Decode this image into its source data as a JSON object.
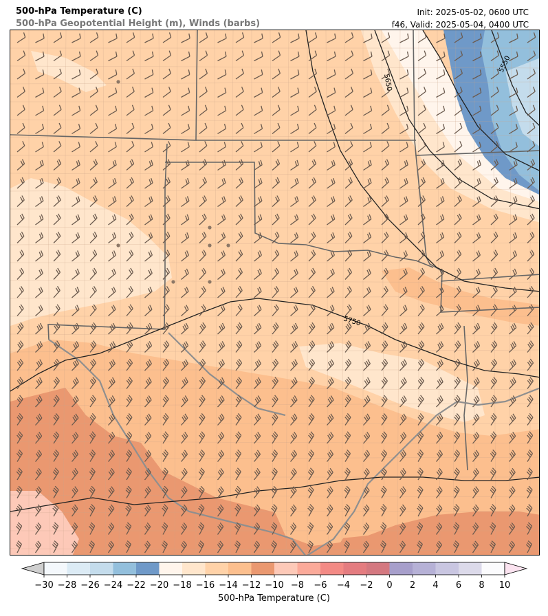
{
  "header": {
    "title_main": "500-hPa Temperature (C)",
    "title_sub": "500-hPa Geopotential Height (m), Winds (barbs)",
    "init": "Init: 2025-05-02, 0600 UTC",
    "valid": "f46, Valid: 2025-05-04, 0400 UTC"
  },
  "map": {
    "contour_labels": [
      "5650",
      "5550",
      "5750"
    ]
  },
  "colorbar": {
    "label": "500-hPa Temperature (C)",
    "ticks": [
      "−30",
      "−28",
      "−26",
      "−24",
      "−22",
      "−20",
      "−18",
      "−16",
      "−14",
      "−12",
      "−10",
      "−8",
      "−6",
      "−4",
      "−2",
      "0",
      "2",
      "4",
      "6",
      "8",
      "10"
    ],
    "colors": [
      "#f4f8fc",
      "#dcebf5",
      "#c4dcec",
      "#93bfdc",
      "#6f99c8",
      "#fff5ec",
      "#ffe6cc",
      "#ffd2a8",
      "#fcbf8e",
      "#ea9870",
      "#fdc9b8",
      "#fbaa9a",
      "#f38a85",
      "#e47c80",
      "#d47880",
      "#a79fcb",
      "#b6b1d6",
      "#c9c6e1",
      "#dcdaea",
      "#fbfbfd"
    ],
    "under_color": "#cfcfcf",
    "over_color": "#fbe3f0"
  }
}
